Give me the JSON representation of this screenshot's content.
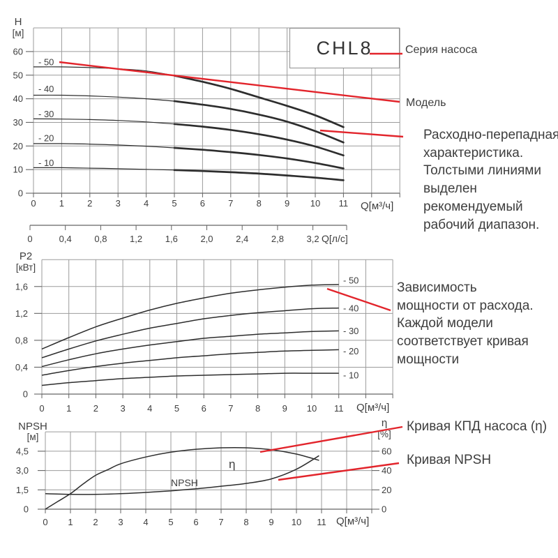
{
  "colors": {
    "red": "#e2242b",
    "curve": "#2d2d2d",
    "grid": "#9b9b9b",
    "axis": "#636363",
    "text": "#3e3e3e",
    "background": "#ffffff"
  },
  "series_box": {
    "label": "CHL8"
  },
  "callouts": {
    "series_label": "Серия насоса",
    "model_label": "Модель",
    "flow_head_note": "Расходно-перепадная\nхарактеристика.\nТолстыми линиями\nвыделен\nрекомендуемый\nрабочий диапазон.",
    "power_note": "Зависимость\nмощности от расхода.\nКаждой модели\nсоответствует кривая\nмощности",
    "eta_note": "Кривая КПД насоса (η)",
    "npsh_note": "Кривая NPSH"
  },
  "chart_data": [
    {
      "type": "line",
      "name": "head-curves",
      "y_axis": {
        "title": "H",
        "unit": "[м]",
        "ticks": [
          0,
          10,
          20,
          30,
          40,
          50,
          60
        ],
        "range": [
          0,
          70
        ]
      },
      "x_axis": {
        "label": "Q[м³/ч]",
        "ticks": [
          0,
          1,
          2,
          3,
          4,
          5,
          6,
          7,
          8,
          9,
          10,
          11
        ],
        "range": [
          0,
          13
        ]
      },
      "secondary_x_axis": {
        "label": "Q[л/с]",
        "tick_labels": [
          "0",
          "0,4",
          "0,8",
          "1,2",
          "1,6",
          "2,0",
          "2,4",
          "2,8",
          "3,2"
        ]
      },
      "recommended_range": {
        "thick_from_q": 5,
        "thick_to_q": 11
      },
      "series": [
        {
          "label": "- 50",
          "points": [
            [
              0,
              53.5
            ],
            [
              1,
              53.5
            ],
            [
              2,
              53.2
            ],
            [
              3,
              52.7
            ],
            [
              4,
              51.8
            ],
            [
              5,
              49.8
            ],
            [
              6,
              47.2
            ],
            [
              7,
              44.2
            ],
            [
              8,
              40.6
            ],
            [
              9,
              37
            ],
            [
              10,
              33
            ],
            [
              11,
              28
            ]
          ]
        },
        {
          "label": "- 40",
          "points": [
            [
              0,
              41.5
            ],
            [
              1,
              41.5
            ],
            [
              2,
              41.2
            ],
            [
              3,
              40.7
            ],
            [
              4,
              40
            ],
            [
              5,
              39
            ],
            [
              6,
              37.5
            ],
            [
              7,
              35.7
            ],
            [
              8,
              33.3
            ],
            [
              9,
              30.3
            ],
            [
              10,
              26.3
            ],
            [
              11,
              21.5
            ]
          ]
        },
        {
          "label": "- 30",
          "points": [
            [
              0,
              31.5
            ],
            [
              1,
              31.4
            ],
            [
              2,
              31.2
            ],
            [
              3,
              30.8
            ],
            [
              4,
              30.2
            ],
            [
              5,
              29.3
            ],
            [
              6,
              28.2
            ],
            [
              7,
              26.8
            ],
            [
              8,
              25
            ],
            [
              9,
              22.7
            ],
            [
              10,
              19.8
            ],
            [
              11,
              16
            ]
          ]
        },
        {
          "label": "- 20",
          "points": [
            [
              0,
              21
            ],
            [
              1,
              21
            ],
            [
              2,
              20.8
            ],
            [
              3,
              20.4
            ],
            [
              4,
              19.9
            ],
            [
              5,
              19.2
            ],
            [
              6,
              18.4
            ],
            [
              7,
              17.4
            ],
            [
              8,
              16.2
            ],
            [
              9,
              14.7
            ],
            [
              10,
              12.8
            ],
            [
              11,
              10.5
            ]
          ]
        },
        {
          "label": "- 10",
          "points": [
            [
              0,
              10.8
            ],
            [
              1,
              10.8
            ],
            [
              2,
              10.6
            ],
            [
              3,
              10.4
            ],
            [
              4,
              10.1
            ],
            [
              5,
              9.8
            ],
            [
              6,
              9.4
            ],
            [
              7,
              8.9
            ],
            [
              8,
              8.3
            ],
            [
              9,
              7.5
            ],
            [
              10,
              6.6
            ],
            [
              11,
              5.5
            ]
          ]
        }
      ]
    },
    {
      "type": "line",
      "name": "power-curves",
      "y_axis": {
        "title": "P2",
        "unit": "[кВт]",
        "ticks": [
          0,
          0.4,
          0.8,
          1.2,
          1.6
        ],
        "tick_labels": [
          "0",
          "0,4",
          "0,8",
          "1,2",
          "1,6"
        ],
        "range": [
          0,
          2
        ]
      },
      "x_axis": {
        "label": "Q[м³/ч]",
        "ticks": [
          0,
          1,
          2,
          3,
          4,
          5,
          6,
          7,
          8,
          9,
          10,
          11
        ],
        "range": [
          0,
          13
        ]
      },
      "series": [
        {
          "label": "- 50",
          "points": [
            [
              0,
              0.67
            ],
            [
              1,
              0.84
            ],
            [
              2,
              1.0
            ],
            [
              3,
              1.13
            ],
            [
              4,
              1.25
            ],
            [
              5,
              1.35
            ],
            [
              6,
              1.43
            ],
            [
              7,
              1.5
            ],
            [
              8,
              1.55
            ],
            [
              9,
              1.59
            ],
            [
              10,
              1.62
            ],
            [
              11,
              1.63
            ]
          ]
        },
        {
          "label": "- 40",
          "points": [
            [
              0,
              0.54
            ],
            [
              1,
              0.67
            ],
            [
              2,
              0.79
            ],
            [
              3,
              0.89
            ],
            [
              4,
              0.98
            ],
            [
              5,
              1.05
            ],
            [
              6,
              1.12
            ],
            [
              7,
              1.17
            ],
            [
              8,
              1.21
            ],
            [
              9,
              1.24
            ],
            [
              10,
              1.27
            ],
            [
              11,
              1.28
            ]
          ]
        },
        {
          "label": "- 30",
          "points": [
            [
              0,
              0.41
            ],
            [
              1,
              0.51
            ],
            [
              2,
              0.6
            ],
            [
              3,
              0.67
            ],
            [
              4,
              0.73
            ],
            [
              5,
              0.78
            ],
            [
              6,
              0.83
            ],
            [
              7,
              0.86
            ],
            [
              8,
              0.89
            ],
            [
              9,
              0.91
            ],
            [
              10,
              0.93
            ],
            [
              11,
              0.94
            ]
          ]
        },
        {
          "label": "- 20",
          "points": [
            [
              0,
              0.28
            ],
            [
              1,
              0.35
            ],
            [
              2,
              0.41
            ],
            [
              3,
              0.46
            ],
            [
              4,
              0.5
            ],
            [
              5,
              0.54
            ],
            [
              6,
              0.57
            ],
            [
              7,
              0.6
            ],
            [
              8,
              0.62
            ],
            [
              9,
              0.64
            ],
            [
              10,
              0.65
            ],
            [
              11,
              0.66
            ]
          ]
        },
        {
          "label": "- 10",
          "points": [
            [
              0,
              0.13
            ],
            [
              1,
              0.17
            ],
            [
              2,
              0.2
            ],
            [
              3,
              0.23
            ],
            [
              4,
              0.25
            ],
            [
              5,
              0.27
            ],
            [
              6,
              0.28
            ],
            [
              7,
              0.29
            ],
            [
              8,
              0.3
            ],
            [
              9,
              0.31
            ],
            [
              10,
              0.31
            ],
            [
              11,
              0.31
            ]
          ]
        }
      ]
    },
    {
      "type": "line",
      "name": "npsh-eta-curves",
      "left_axis": {
        "title": "NPSH",
        "unit": "[м]",
        "ticks": [
          0,
          1.5,
          3,
          4.5
        ],
        "tick_labels": [
          "0",
          "1,5",
          "3,0",
          "4,5"
        ],
        "range": [
          0,
          6
        ]
      },
      "right_axis": {
        "title": "η",
        "unit": "[%]",
        "ticks": [
          0,
          20,
          40,
          60
        ],
        "range": [
          0,
          80
        ]
      },
      "x_axis": {
        "label": "Q[м³/ч]",
        "ticks": [
          0,
          1,
          2,
          3,
          4,
          5,
          6,
          7,
          8,
          9,
          10,
          11
        ],
        "range": [
          0,
          13
        ]
      },
      "series": [
        {
          "label": "η",
          "axis": "right",
          "points": [
            [
              0,
              0
            ],
            [
              0.5,
              8
            ],
            [
              1,
              16
            ],
            [
              1.5,
              26
            ],
            [
              2,
              35
            ],
            [
              2.5,
              41
            ],
            [
              3,
              47
            ],
            [
              4,
              54
            ],
            [
              5,
              59
            ],
            [
              6,
              62
            ],
            [
              7,
              63.5
            ],
            [
              8,
              63.5
            ],
            [
              9,
              61.5
            ],
            [
              10,
              57
            ],
            [
              10.9,
              50.5
            ]
          ]
        },
        {
          "label": "NPSH",
          "axis": "left",
          "points": [
            [
              0,
              1.2
            ],
            [
              1,
              1.15
            ],
            [
              2,
              1.15
            ],
            [
              3,
              1.2
            ],
            [
              4,
              1.3
            ],
            [
              5,
              1.42
            ],
            [
              6,
              1.58
            ],
            [
              7,
              1.78
            ],
            [
              8,
              2.0
            ],
            [
              9,
              2.35
            ],
            [
              10,
              3.1
            ],
            [
              10.9,
              4.15
            ]
          ]
        }
      ]
    }
  ]
}
